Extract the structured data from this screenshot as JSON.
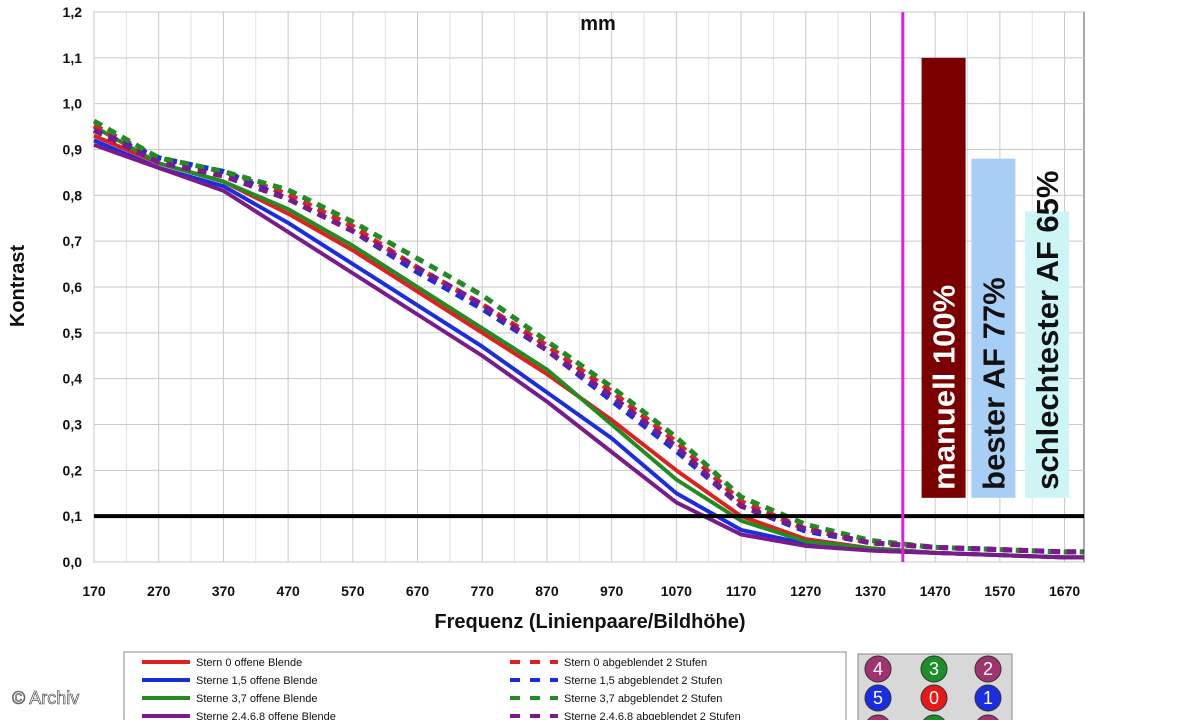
{
  "chart_data": {
    "type": "line",
    "title_fragment": "mm",
    "xlabel": "Frequenz (Linienpaare/Bildhöhe)",
    "ylabel": "Kontrast",
    "xlim": [
      170,
      1700
    ],
    "ylim": [
      0,
      1.2
    ],
    "x_ticks": [
      170,
      270,
      370,
      470,
      570,
      670,
      770,
      870,
      970,
      1070,
      1170,
      1270,
      1370,
      1470,
      1570,
      1670
    ],
    "y_ticks": [
      0,
      0.1,
      0.2,
      0.3,
      0.4,
      0.5,
      0.6,
      0.7,
      0.8,
      0.9,
      1.0,
      1.1,
      1.2
    ],
    "y_tick_labels": [
      "0,0",
      "0,1",
      "0,2",
      "0,3",
      "0,4",
      "0,5",
      "0,6",
      "0,7",
      "0,8",
      "0,9",
      "1,0",
      "1,1",
      "1,2"
    ],
    "x_tick_labels": [
      "170",
      "270",
      "370",
      "470",
      "570",
      "670",
      "770",
      "870",
      "970",
      "1070",
      "1170",
      "1270",
      "1370",
      "1470",
      "1570",
      "1670"
    ],
    "grid": true,
    "reference_line": {
      "y": 0.1,
      "color": "#000000"
    },
    "vertical_marker": {
      "x": 1420,
      "color": "#dd22dd"
    },
    "x": [
      170,
      270,
      370,
      470,
      570,
      670,
      770,
      870,
      970,
      1070,
      1170,
      1270,
      1370,
      1470,
      1570,
      1670,
      1700
    ],
    "series": [
      {
        "name": "Stern 0 offene Blende",
        "color": "#e02020",
        "dash": false,
        "values": [
          0.93,
          0.87,
          0.83,
          0.76,
          0.68,
          0.59,
          0.5,
          0.41,
          0.31,
          0.2,
          0.1,
          0.05,
          0.03,
          0.02,
          0.015,
          0.01,
          0.01
        ]
      },
      {
        "name": "Sterne 1,5 offene Blende",
        "color": "#1a2ee0",
        "dash": false,
        "values": [
          0.92,
          0.86,
          0.82,
          0.74,
          0.65,
          0.56,
          0.47,
          0.37,
          0.27,
          0.15,
          0.07,
          0.04,
          0.025,
          0.02,
          0.015,
          0.01,
          0.01
        ]
      },
      {
        "name": "Sterne 3,7 offene Blende",
        "color": "#228b22",
        "dash": false,
        "values": [
          0.95,
          0.87,
          0.83,
          0.77,
          0.69,
          0.6,
          0.51,
          0.42,
          0.3,
          0.18,
          0.09,
          0.045,
          0.03,
          0.02,
          0.015,
          0.01,
          0.01
        ]
      },
      {
        "name": "Sterne 2,4,6,8 offene Blende",
        "color": "#7b1a8a",
        "dash": false,
        "values": [
          0.91,
          0.86,
          0.81,
          0.72,
          0.63,
          0.54,
          0.45,
          0.35,
          0.24,
          0.13,
          0.06,
          0.035,
          0.025,
          0.02,
          0.015,
          0.01,
          0.01
        ]
      },
      {
        "name": "Stern 0 abgeblendet 2 Stufen",
        "color": "#e02020",
        "dash": true,
        "values": [
          0.94,
          0.87,
          0.84,
          0.79,
          0.72,
          0.63,
          0.55,
          0.46,
          0.36,
          0.25,
          0.12,
          0.06,
          0.03,
          0.02,
          0.015,
          0.01,
          0.01
        ]
      },
      {
        "name": "Sterne 1,5 abgeblendet 2 Stufen",
        "color": "#1a2ee0",
        "dash": true,
        "values": [
          0.93,
          0.87,
          0.84,
          0.78,
          0.71,
          0.62,
          0.54,
          0.45,
          0.34,
          0.23,
          0.11,
          0.055,
          0.03,
          0.02,
          0.015,
          0.01,
          0.01
        ]
      },
      {
        "name": "Sterne 3,7 abgeblendet 2 Stufen",
        "color": "#228b22",
        "dash": true,
        "values": [
          0.95,
          0.87,
          0.84,
          0.8,
          0.73,
          0.65,
          0.57,
          0.47,
          0.37,
          0.26,
          0.13,
          0.07,
          0.035,
          0.02,
          0.015,
          0.01,
          0.01
        ]
      },
      {
        "name": "Sterne 2,4,6,8 abgeblendet 2 Stufen",
        "color": "#7b1a8a",
        "dash": true,
        "values": [
          0.93,
          0.86,
          0.83,
          0.78,
          0.71,
          0.63,
          0.55,
          0.45,
          0.35,
          0.24,
          0.11,
          0.06,
          0.03,
          0.02,
          0.015,
          0.01,
          0.01
        ]
      }
    ],
    "bars": [
      {
        "label": "manuell 100%",
        "value": 1.1,
        "color": "#7a0000",
        "text_color": "#ffffff",
        "x_center": 1483
      },
      {
        "label": "bester AF 77%",
        "value": 0.88,
        "color": "#a7cff5",
        "text_color": "#111111",
        "x_center": 1560
      },
      {
        "label": "schlechtester AF 65%",
        "value": 0.765,
        "color": "#cdf5f5",
        "text_color": "#111111",
        "x_center": 1643
      }
    ],
    "bar_base": 0.14
  },
  "legend": {
    "items": [
      {
        "label": "Stern 0 offene Blende",
        "color": "#e02020",
        "dash": false
      },
      {
        "label": "Sterne 1,5 offene Blende",
        "color": "#1a2ee0",
        "dash": false
      },
      {
        "label": "Sterne 3,7 offene Blende",
        "color": "#228b22",
        "dash": false
      },
      {
        "label": "Sterne 2,4,6,8 offene Blende",
        "color": "#7b1a8a",
        "dash": false
      },
      {
        "label": "Stern 0 abgeblendet 2 Stufen",
        "color": "#e02020",
        "dash": true
      },
      {
        "label": "Sterne 1,5 abgeblendet 2 Stufen",
        "color": "#1a2ee0",
        "dash": true
      },
      {
        "label": "Sterne 3,7 abgeblendet 2 Stufen",
        "color": "#228b22",
        "dash": true
      },
      {
        "label": "Sterne 2,4,6,8 abgeblendet 2 Stufen",
        "color": "#7b1a8a",
        "dash": true
      }
    ]
  },
  "badges": [
    {
      "label": "4",
      "color": "#a0346e"
    },
    {
      "label": "3",
      "color": "#1d8f2a"
    },
    {
      "label": "2",
      "color": "#a0346e"
    },
    {
      "label": "5",
      "color": "#1a2ee0"
    },
    {
      "label": "0",
      "color": "#e81818"
    },
    {
      "label": "1",
      "color": "#1a2ee0"
    }
  ],
  "credit": "© Archiv"
}
